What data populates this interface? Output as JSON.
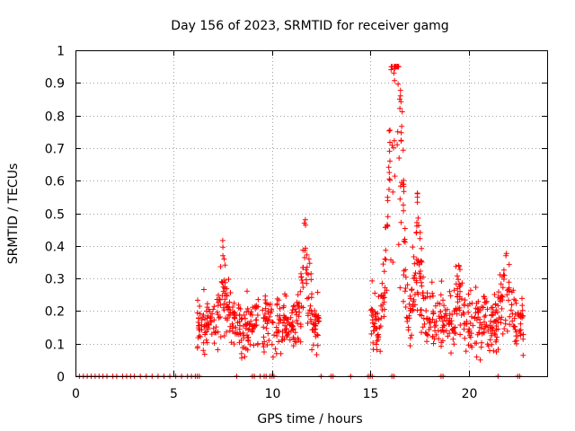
{
  "chart_data": {
    "type": "scatter",
    "title": "Day 156 of 2023, SRMTID for receiver gamg",
    "xlabel": "GPS time / hours",
    "ylabel": "SRMTID / TECUs",
    "xlim": [
      0,
      24
    ],
    "ylim": [
      0,
      1
    ],
    "xticks": [
      0,
      5,
      10,
      15,
      20
    ],
    "yticks": [
      0,
      0.1,
      0.2,
      0.3,
      0.4,
      0.5,
      0.6,
      0.7,
      0.8,
      0.9,
      1
    ],
    "ytick_labels": [
      "0",
      "0.1",
      "0.2",
      "0.3",
      "0.4",
      "0.5",
      "0.6",
      "0.7",
      "0.8",
      "0.9",
      "1"
    ],
    "xtick_labels": [
      "0",
      "5",
      "10",
      "15",
      "20"
    ],
    "grid": true,
    "marker": "+",
    "color": "#ff0000",
    "zero_points_x": [
      0.2,
      0.4,
      0.6,
      0.8,
      1.0,
      1.2,
      1.4,
      1.6,
      1.9,
      2.1,
      2.4,
      2.6,
      2.8,
      3.0,
      3.3,
      3.6,
      3.9,
      4.2,
      4.5,
      4.8,
      5.1,
      5.4,
      5.7,
      5.9,
      6.1,
      6.2,
      6.3,
      8.2,
      9.0,
      9.1,
      9.4,
      9.6,
      9.7,
      9.9,
      10.0,
      10.1,
      12.5,
      13.0,
      13.1,
      14.0,
      14.9,
      15.0,
      15.1,
      16.1,
      16.2,
      18.6,
      18.7,
      21.5,
      22.5,
      22.6
    ],
    "series_envelope": [
      {
        "name": "segment-1",
        "x_range": [
          6.2,
          9.3
        ],
        "base": 0.16,
        "amp": 0.06
      },
      {
        "name": "segment-2",
        "x_range": [
          9.5,
          12.4
        ],
        "base": 0.16,
        "amp": 0.07
      },
      {
        "name": "segment-3",
        "x_range": [
          15.0,
          22.8
        ],
        "base": 0.17,
        "amp": 0.07
      }
    ],
    "peaks": [
      {
        "x": 7.5,
        "y": 0.37
      },
      {
        "x": 11.7,
        "y": 0.48
      },
      {
        "x": 16.2,
        "y": 0.93
      },
      {
        "x": 16.5,
        "y": 0.85
      },
      {
        "x": 16.4,
        "y": 0.75
      },
      {
        "x": 16.0,
        "y": 0.66
      },
      {
        "x": 17.4,
        "y": 0.56
      },
      {
        "x": 19.5,
        "y": 0.34
      },
      {
        "x": 21.9,
        "y": 0.37
      }
    ]
  }
}
